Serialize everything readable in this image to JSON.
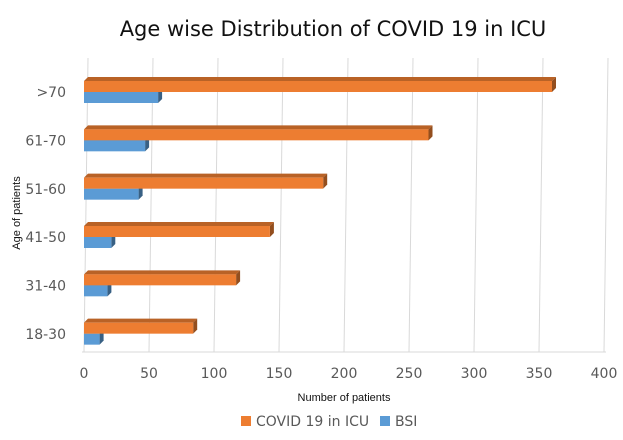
{
  "chart_data": {
    "type": "bar",
    "orientation": "horizontal",
    "title": "Age wise Distribution of COVID 19 in ICU",
    "xlabel": "Number of patients",
    "ylabel": "Age of patients",
    "categories": [
      "18-30",
      "31-40",
      "41-50",
      "51-60",
      "61-70",
      ">70"
    ],
    "series": [
      {
        "name": "COVID 19 in ICU",
        "color": "#ED7D31",
        "values": [
          84,
          117,
          143,
          184,
          265,
          360
        ]
      },
      {
        "name": "BSI",
        "color": "#5B9BD5",
        "values": [
          12,
          18,
          21,
          42,
          47,
          57
        ]
      }
    ],
    "xlim": [
      0,
      400
    ],
    "xticks": [
      "0",
      "50",
      "100",
      "150",
      "200",
      "250",
      "300",
      "350",
      "400"
    ],
    "grid": true,
    "legend": "bottom"
  }
}
